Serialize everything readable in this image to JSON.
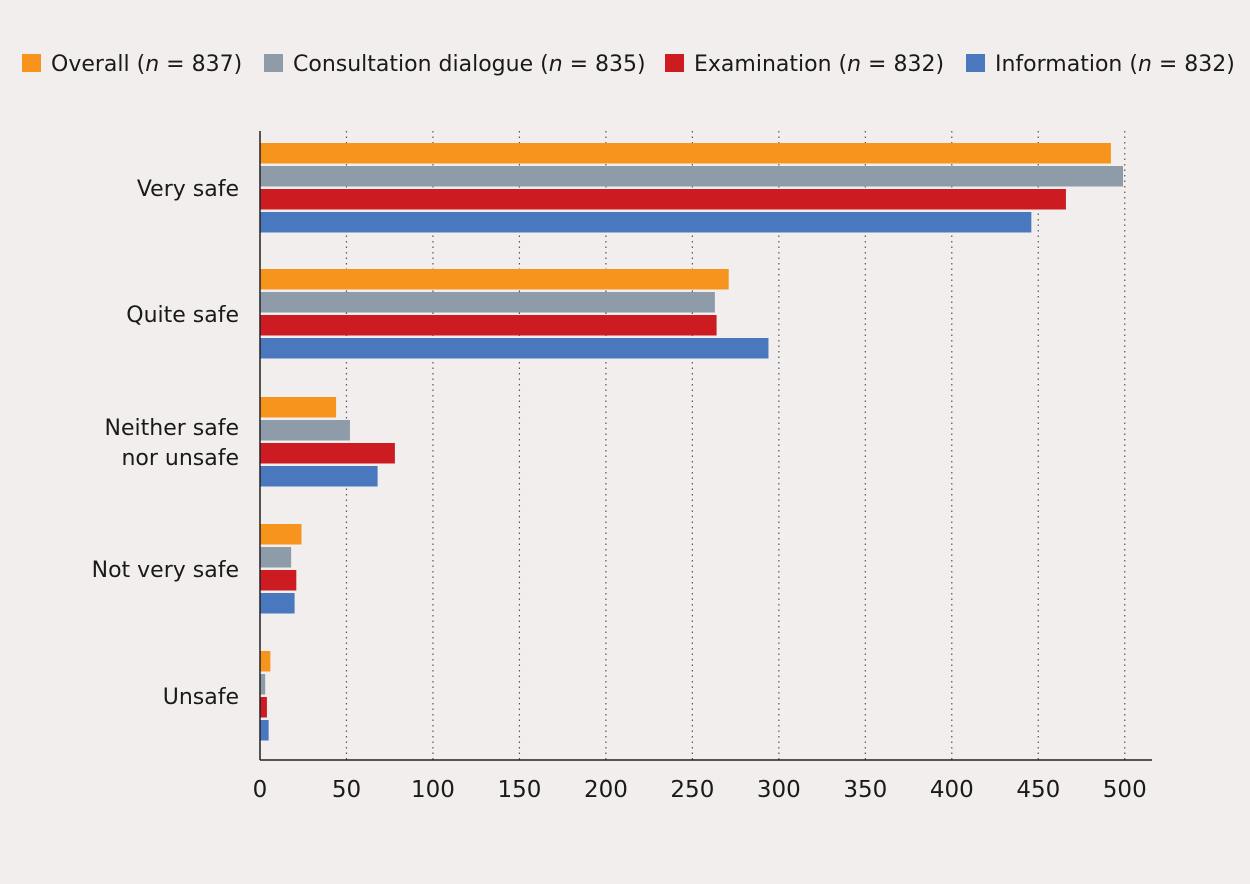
{
  "chart_data": {
    "type": "bar",
    "orientation": "horizontal",
    "categories": [
      "Very safe",
      "Quite safe",
      "Neither safe nor unsafe",
      "Not very safe",
      "Unsafe"
    ],
    "category_lines": [
      [
        "Very safe"
      ],
      [
        "Quite safe"
      ],
      [
        "Neither safe",
        "nor unsafe"
      ],
      [
        "Not very safe"
      ],
      [
        "Unsafe"
      ]
    ],
    "series": [
      {
        "name": "Overall",
        "n_label": "(n = 837)",
        "color": "#f7941d",
        "values": [
          492,
          271,
          44,
          24,
          6
        ]
      },
      {
        "name": "Consultation dialogue",
        "n_label": "(n = 835)",
        "color": "#8e9ba8",
        "values": [
          499,
          263,
          52,
          18,
          3
        ]
      },
      {
        "name": "Examination",
        "n_label": "(n = 832)",
        "color": "#cc1c22",
        "values": [
          466,
          264,
          78,
          21,
          4
        ]
      },
      {
        "name": "Information",
        "n_label": "(n = 832)",
        "color": "#4a78bf",
        "values": [
          446,
          294,
          68,
          20,
          5
        ]
      }
    ],
    "xlim": [
      0,
      500
    ],
    "xticks": [
      "0",
      "50",
      "100",
      "150",
      "200",
      "250",
      "300",
      "350",
      "400",
      "450",
      "500"
    ],
    "grid": "vertical dotted",
    "legend_position": "top"
  }
}
